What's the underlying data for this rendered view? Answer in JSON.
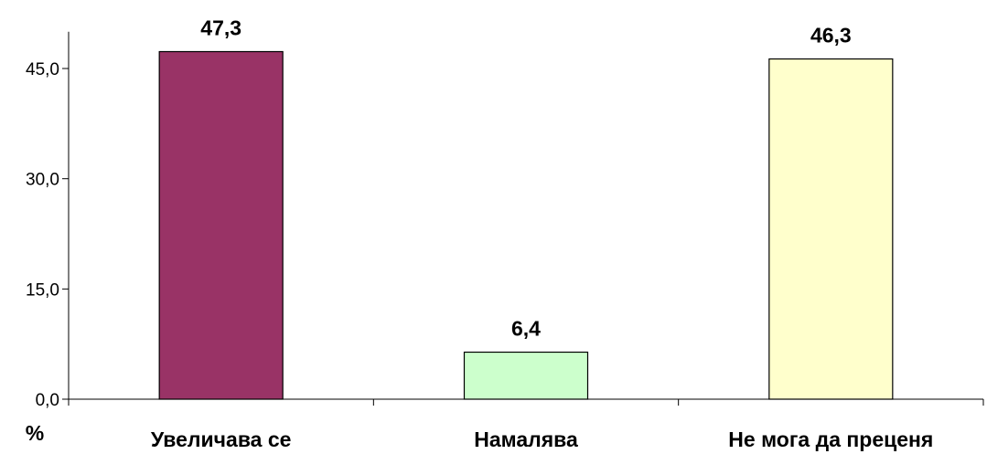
{
  "chart_data": {
    "type": "bar",
    "categories": [
      "Увеличава се",
      "Намалява",
      "Не мога да преценя"
    ],
    "values": [
      47.3,
      6.4,
      46.3
    ],
    "value_labels": [
      "47,3",
      "6,4",
      "46,3"
    ],
    "ylabel": "%",
    "ylim": [
      0,
      50
    ],
    "yticks": [
      0,
      15,
      30,
      45
    ],
    "ytick_labels": [
      "0,0",
      "15,0",
      "30,0",
      "45,0"
    ],
    "grid": false,
    "legend": "none",
    "colors": [
      "#993366",
      "#CCFFCC",
      "#FFFFCC"
    ]
  }
}
